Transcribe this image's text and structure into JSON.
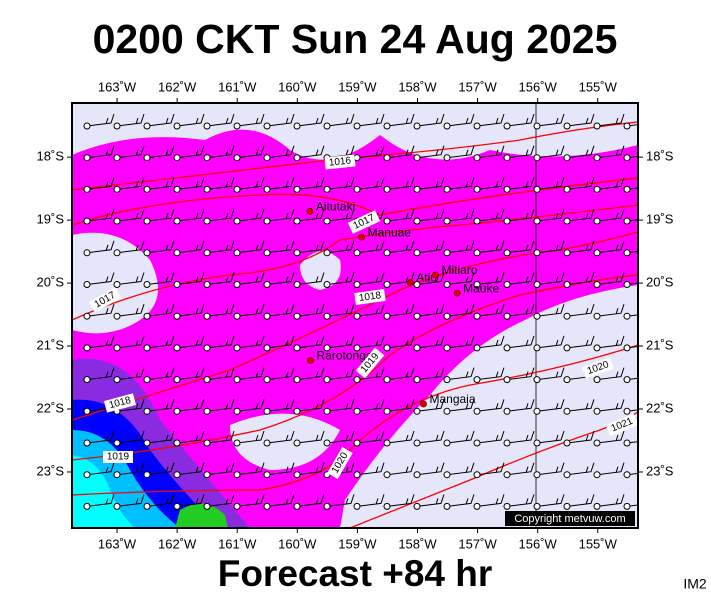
{
  "header": {
    "title": "0200 CKT Sun 24 Aug 2025"
  },
  "map": {
    "lonlim": [
      -163.75,
      -154.33
    ],
    "latlim": [
      -17.14,
      -23.89
    ],
    "lon_ticks": [
      {
        "value": -163,
        "label": "163˚W"
      },
      {
        "value": -162,
        "label": "162˚W"
      },
      {
        "value": -161,
        "label": "161˚W"
      },
      {
        "value": -160,
        "label": "160˚W"
      },
      {
        "value": -159,
        "label": "159˚W"
      },
      {
        "value": -158,
        "label": "158˚W"
      },
      {
        "value": -157,
        "label": "157˚W"
      },
      {
        "value": -156,
        "label": "156˚W"
      },
      {
        "value": -155,
        "label": "155˚W"
      }
    ],
    "lat_ticks": [
      {
        "value": -18,
        "label": "18˚S"
      },
      {
        "value": -19,
        "label": "19˚S"
      },
      {
        "value": -20,
        "label": "20˚S"
      },
      {
        "value": -21,
        "label": "21˚S"
      },
      {
        "value": -22,
        "label": "22˚S"
      },
      {
        "value": -23,
        "label": "23˚S"
      }
    ],
    "places": [
      {
        "name": "Aitutaki",
        "lon": -159.79,
        "lat": -18.86
      },
      {
        "name": "Manuae",
        "lon": -158.93,
        "lat": -19.27
      },
      {
        "name": "Atiu",
        "lon": -158.12,
        "lat": -19.99
      },
      {
        "name": "Mitiaro",
        "lon": -157.7,
        "lat": -19.87
      },
      {
        "name": "Mauke",
        "lon": -157.34,
        "lat": -20.16
      },
      {
        "name": "Rarotonga",
        "lon": -159.78,
        "lat": -21.23
      },
      {
        "name": "Mangaia",
        "lon": -157.9,
        "lat": -21.92
      }
    ],
    "isobar_labels": [
      "1016",
      "1017",
      "1017",
      "1018",
      "1018",
      "1019",
      "1019",
      "1020",
      "1020",
      "1021"
    ],
    "copyright": "Copyright metvuw.com"
  },
  "footer": {
    "forecast": "Forecast +84 hr",
    "code": "IM2"
  }
}
